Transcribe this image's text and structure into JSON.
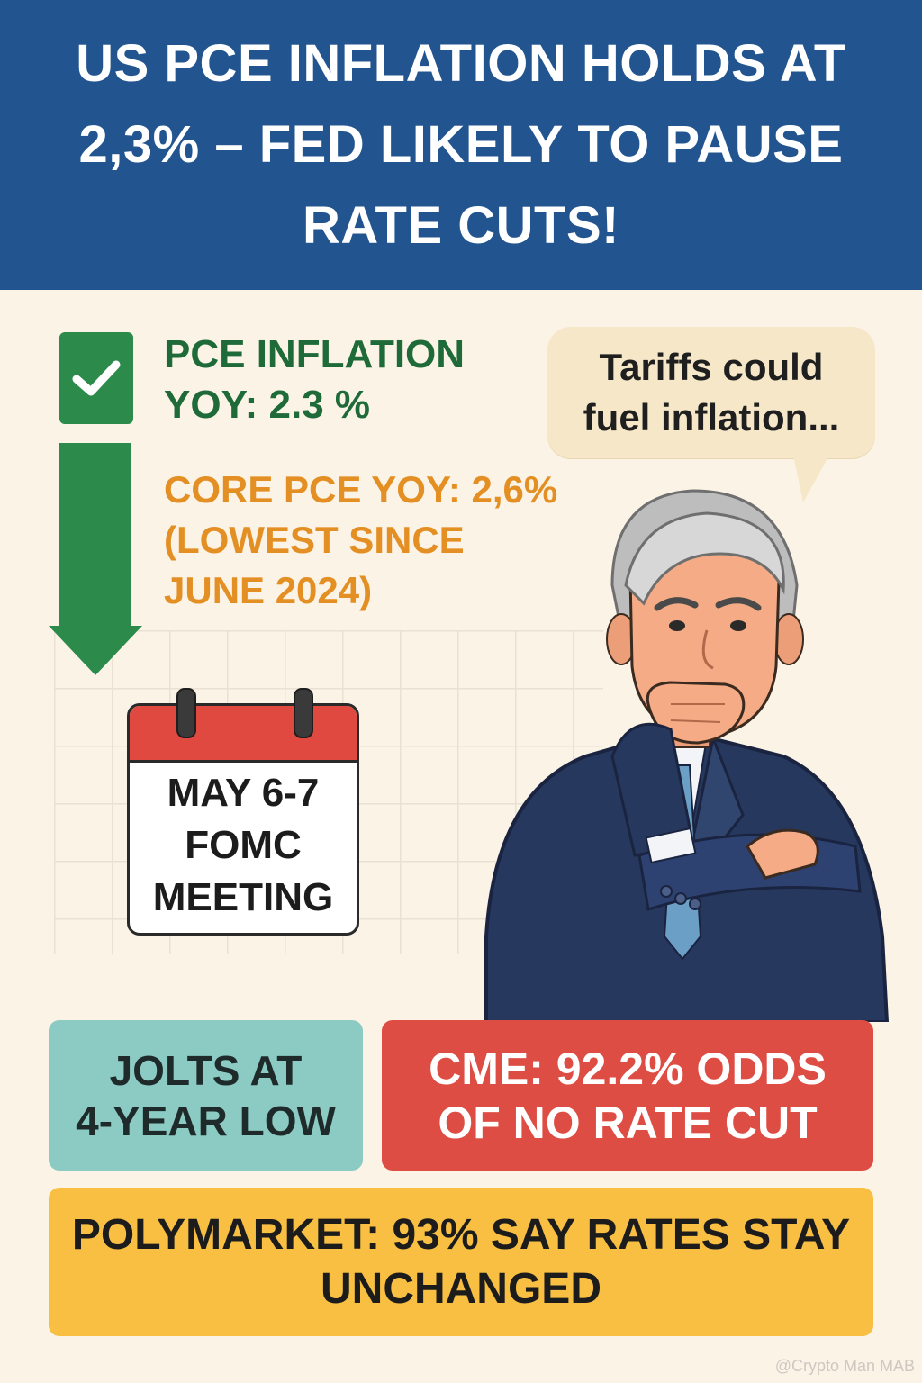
{
  "header": {
    "title": "US PCE INFLATION HOLDS AT 2,3% – FED LIKELY TO PAUSE RATE CUTS!"
  },
  "stats": {
    "pce_line1": "PCE INFLATION",
    "pce_line2": "YOY: 2.3 %",
    "core_line1": "CORE PCE YOY: 2,6%",
    "core_line2": "(LOWEST SINCE",
    "core_line3": "JUNE 2024)"
  },
  "calendar": {
    "line1": "MAY 6-7",
    "line2": "FOMC",
    "line3": "MEETING"
  },
  "speech_bubble": {
    "line1": "Tariffs could",
    "line2": "fuel inflation..."
  },
  "boxes": {
    "jolts_line1": "JOLTS AT",
    "jolts_line2": "4-YEAR LOW",
    "cme_line1": "CME: 92.2% ODDS",
    "cme_line2": "OF NO RATE CUT",
    "poly_line1": "POLYMARKET: 93% SAY RATES STAY",
    "poly_line2": "UNCHANGED"
  },
  "watermark": "@Crypto Man MAB",
  "colors": {
    "header_bg": "#22558f",
    "page_bg": "#fbf3e6",
    "green": "#2c8a4b",
    "orange": "#e48f23",
    "teal": "#8ccbc4",
    "red": "#de4d43",
    "yellow": "#f8bf42"
  },
  "icons": [
    "checkmark-icon",
    "down-arrow-icon",
    "calendar-icon",
    "speech-bubble-icon"
  ]
}
